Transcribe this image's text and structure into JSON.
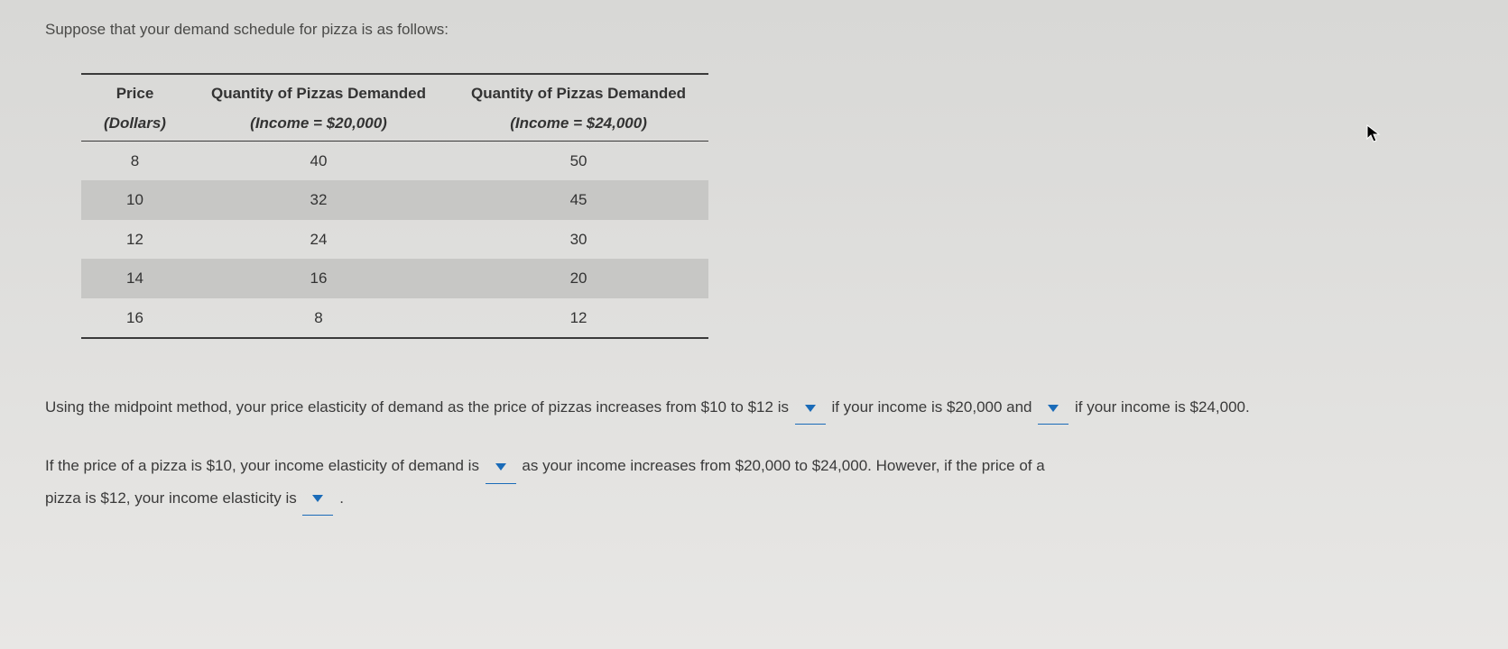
{
  "intro": "Suppose that your demand schedule for pizza is as follows:",
  "table": {
    "headers": {
      "col1_line1": "Price",
      "col1_line2": "(Dollars)",
      "col2_line1": "Quantity of Pizzas Demanded",
      "col2_line2": "(Income = $20,000)",
      "col3_line1": "Quantity of Pizzas Demanded",
      "col3_line2": "(Income = $24,000)"
    },
    "rows": [
      {
        "price": "8",
        "q1": "40",
        "q2": "50",
        "alt": false
      },
      {
        "price": "10",
        "q1": "32",
        "q2": "45",
        "alt": true
      },
      {
        "price": "12",
        "q1": "24",
        "q2": "30",
        "alt": false
      },
      {
        "price": "14",
        "q1": "16",
        "q2": "20",
        "alt": true
      },
      {
        "price": "16",
        "q1": "8",
        "q2": "12",
        "alt": false
      }
    ]
  },
  "q1": {
    "part1": "Using the midpoint method, your price elasticity of demand as the price of pizzas increases from $10 to $12 is ",
    "part2": " if your income is $20,000 and ",
    "part3": " if your income is $24,000."
  },
  "q2": {
    "part1": "If the price of a pizza is $10, your income elasticity of demand is ",
    "part2": " as your income increases from $20,000 to $24,000. However, if the price of a ",
    "part3": "pizza is $12, your income elasticity is ",
    "part4": " ."
  },
  "colors": {
    "dropdown_arrow": "#1a6bb8",
    "dropdown_underline": "#1a6bb8",
    "text": "#3a3a3a",
    "table_border": "#3a3a3a",
    "alt_row_bg": "#c7c7c5",
    "page_bg_top": "#d8d8d6",
    "page_bg_bottom": "#e8e7e5"
  }
}
